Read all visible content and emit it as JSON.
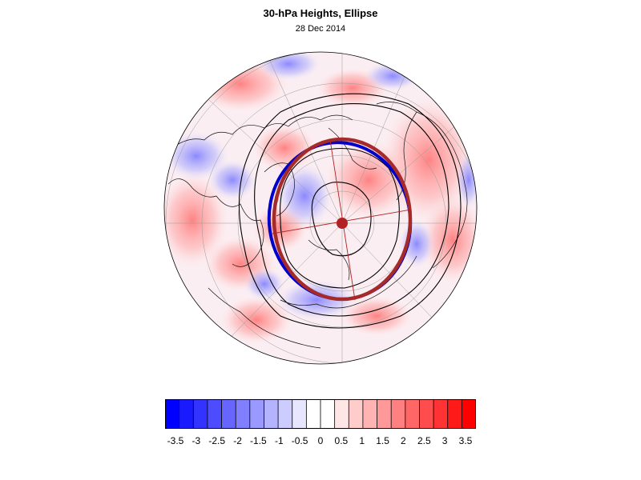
{
  "title": "30-hPa Heights, Ellipse",
  "subtitle": "28 Dec 2014",
  "colorbar": {
    "colors": [
      "#0000ff",
      "#1a1aff",
      "#3333ff",
      "#4d4dff",
      "#6666ff",
      "#8080ff",
      "#9999ff",
      "#b3b3ff",
      "#ccccff",
      "#e6e6ff",
      "#ffffff",
      "#ffffff",
      "#ffe6e6",
      "#ffcccc",
      "#ffb3b3",
      "#ff9999",
      "#ff8080",
      "#ff6666",
      "#ff4d4d",
      "#ff3333",
      "#ff1a1a",
      "#ff0000"
    ],
    "labels": [
      "-3.5",
      "-3",
      "-2.5",
      "-2",
      "-1.5",
      "-1",
      "-0.5",
      "0",
      "0.5",
      "1",
      "1.5",
      "2",
      "2.5",
      "3",
      "3.5"
    ]
  },
  "ellipse": {
    "fitted_color": "#a52a2a",
    "observed_color": "#0000cc",
    "center_color": "#b22222"
  },
  "contour_color": "#000000"
}
